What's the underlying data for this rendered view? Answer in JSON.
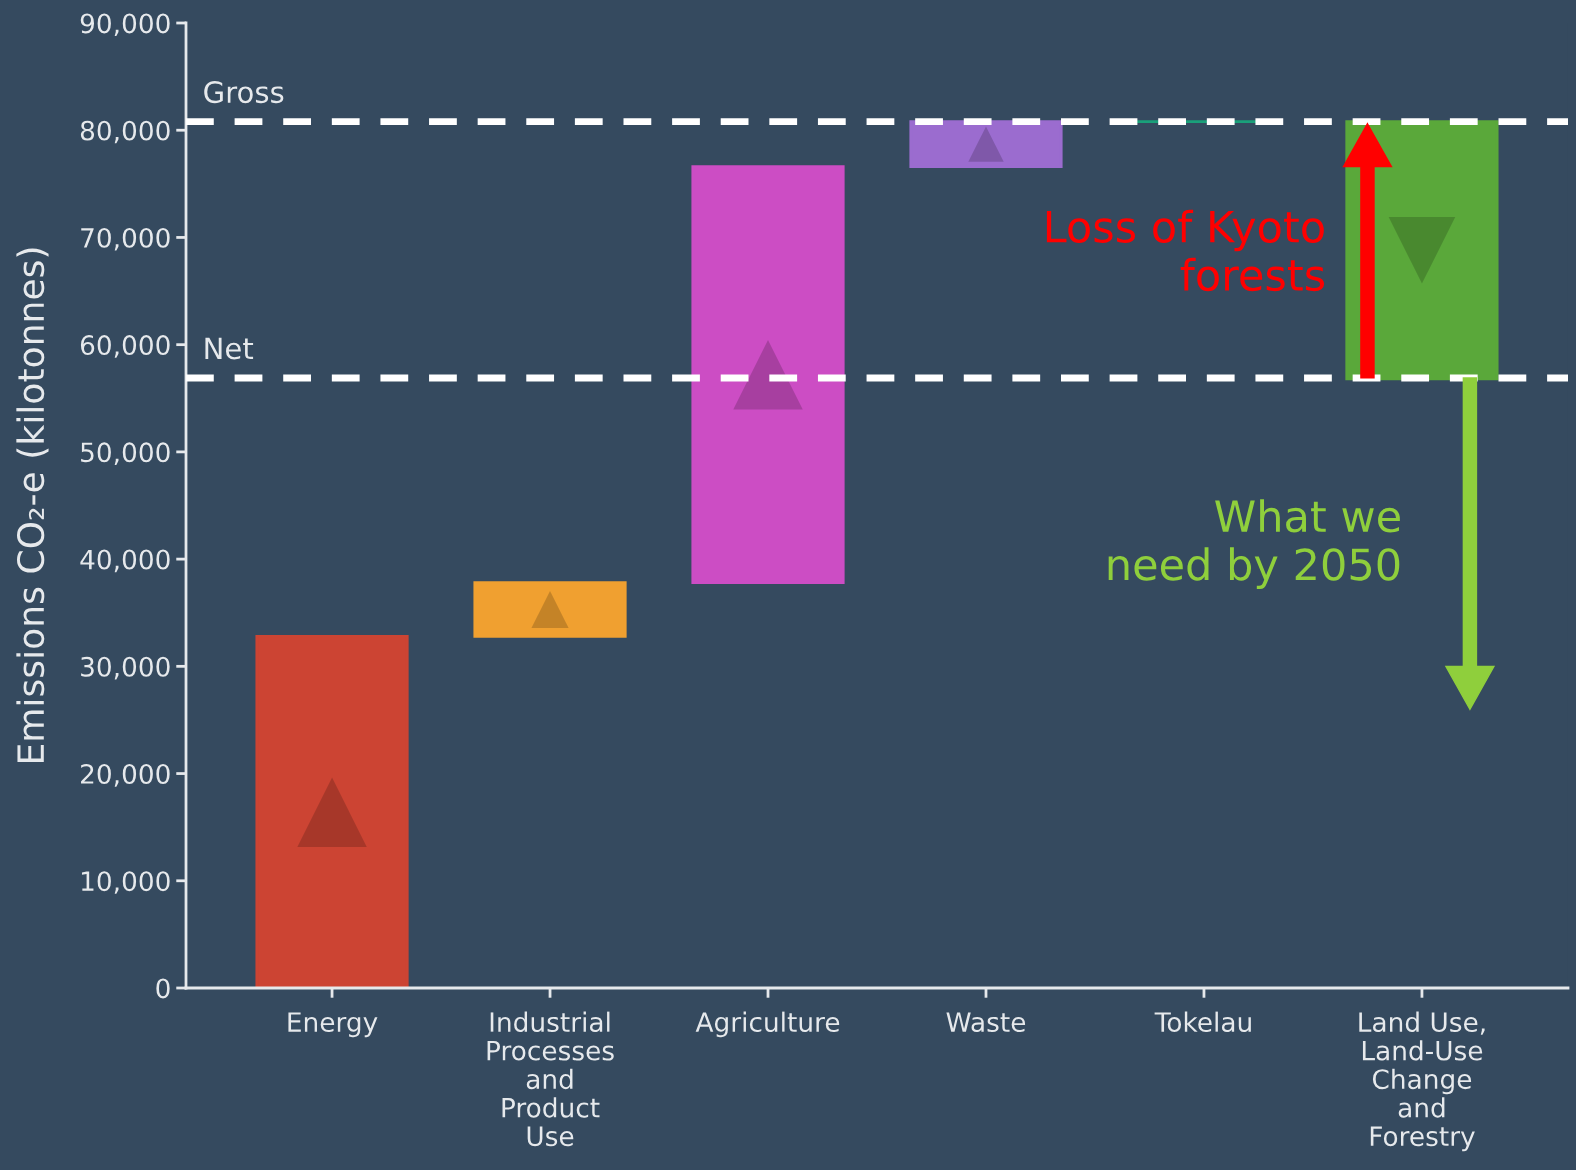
{
  "chart_data": {
    "type": "bar",
    "ylabel": "Emissions CO₂-e (kilotonnes)",
    "categories": [
      "Energy",
      "Industrial\nProcesses\nand\nProduct\nUse",
      "Agriculture",
      "Waste",
      "Tokelau",
      "Land Use,\nLand-Use\nChange\nand\nForestry"
    ],
    "values": [
      32800,
      5000,
      38800,
      4200,
      0,
      -24000
    ],
    "base": [
      0,
      32800,
      37800,
      76600,
      80800,
      80800
    ],
    "colors": [
      "#cc4433",
      "#f0a030",
      "#cc4dc4",
      "#9b6ccf",
      "#1aa07a",
      "#5aa83a"
    ],
    "ylim": [
      0,
      90000
    ],
    "yticks": [
      {
        "value": 0,
        "label": "0"
      },
      {
        "value": 10000,
        "label": "10,000"
      },
      {
        "value": 20000,
        "label": "20,000"
      },
      {
        "value": 30000,
        "label": "30,000"
      },
      {
        "value": 40000,
        "label": "40,000"
      },
      {
        "value": 50000,
        "label": "50,000"
      },
      {
        "value": 60000,
        "label": "60,000"
      },
      {
        "value": 70000,
        "label": "70,000"
      },
      {
        "value": 80000,
        "label": "80,000"
      },
      {
        "value": 90000,
        "label": "90,000"
      }
    ],
    "ref_lines": [
      {
        "axis": "y",
        "value": 80800,
        "label": "Gross",
        "color": "#ffffff",
        "line_style": "dashed"
      },
      {
        "axis": "y",
        "value": 56900,
        "label": "Net",
        "color": "#ffffff",
        "line_style": "dashed"
      }
    ],
    "annotations": [
      "Loss of Kyoto\nforests",
      "What we\nneed by 2050"
    ],
    "grid": false,
    "legend": false
  }
}
